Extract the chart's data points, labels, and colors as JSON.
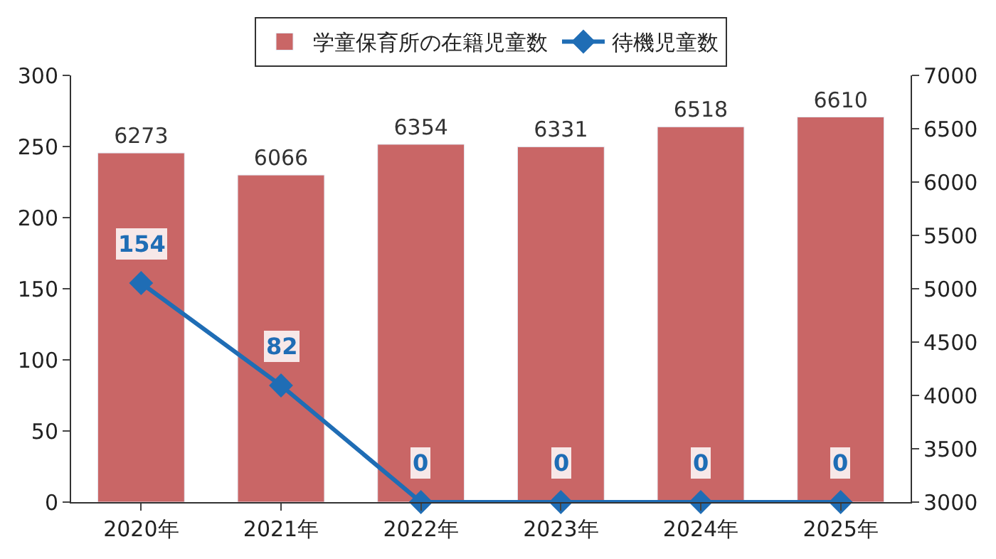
{
  "chart_data": {
    "type": "bar",
    "categories": [
      "2020年",
      "2021年",
      "2022年",
      "2023年",
      "2024年",
      "2025年"
    ],
    "series": [
      {
        "name": "学童保育所の在籍児童数",
        "axis": "y2",
        "color": "#c96666",
        "values": [
          6273,
          6066,
          6354,
          6331,
          6518,
          6610
        ]
      },
      {
        "name": "待機児童数",
        "type": "line",
        "axis": "y",
        "color": "#1f6db5",
        "marker": "diamond",
        "values": [
          154,
          82,
          0,
          0,
          0,
          0
        ]
      }
    ],
    "ylim": [
      0,
      300
    ],
    "yticks": [
      0,
      50,
      100,
      150,
      200,
      250,
      300
    ],
    "y2lim": [
      3000,
      7000
    ],
    "y2ticks": [
      3000,
      3500,
      4000,
      4500,
      5000,
      5500,
      6000,
      6500,
      7000
    ],
    "data_labels": true,
    "legend": "top"
  }
}
